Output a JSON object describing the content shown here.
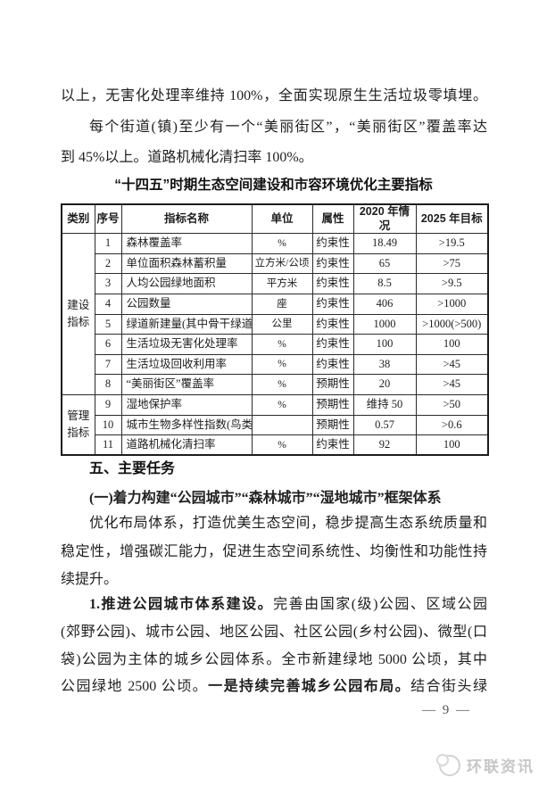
{
  "colors": {
    "page_background": "#ffffff",
    "text": "#1f1f1f",
    "table_border": "#1c1c1c",
    "watermark_gray": "#c7c7c7"
  },
  "intro": {
    "lines": [
      {
        "text": "以上，无害化处理率维持 100%，全面实现原生生活垃圾零填埋。"
      },
      {
        "text": "每个街道(镇)至少有一个“美丽街区”，“美丽街区”覆盖率达"
      },
      {
        "text": "到 45%以上。道路机械化清扫率 100%。"
      }
    ]
  },
  "table": {
    "title": "“十四五”时期生态空间建设和市容环境优化主要指标",
    "headers": [
      "类别",
      "序号",
      "指标名称",
      "单位",
      "属性",
      "2020 年情况",
      "2025 年目标"
    ],
    "groups": [
      {
        "category": "建设指标",
        "rows": [
          [
            "1",
            "森林覆盖率",
            "%",
            "约束性",
            "18.49",
            ">19.5"
          ],
          [
            "2",
            "单位面积森林蓄积量",
            "立方米/公顷",
            "约束性",
            "65",
            ">75"
          ],
          [
            "3",
            "人均公园绿地面积",
            "平方米",
            "约束性",
            "8.5",
            ">9.5"
          ],
          [
            "4",
            "公园数量",
            "座",
            "约束性",
            "406",
            ">1000"
          ],
          [
            "5",
            "绿道新建量(其中骨干绿道)",
            "公里",
            "约束性",
            "1000",
            ">1000(>500)"
          ],
          [
            "6",
            "生活垃圾无害化处理率",
            "%",
            "约束性",
            "100",
            "100"
          ],
          [
            "7",
            "生活垃圾回收利用率",
            "%",
            "约束性",
            "38",
            ">45"
          ],
          [
            "8",
            "“美丽街区”覆盖率",
            "%",
            "预期性",
            "20",
            ">45"
          ]
        ]
      },
      {
        "category": "管理指标",
        "rows": [
          [
            "9",
            "湿地保护率",
            "%",
            "预期性",
            "维持 50",
            ">50"
          ],
          [
            "10",
            "城市生物多样性指数(鸟类)",
            "",
            "预期性",
            "0.57",
            ">0.6"
          ],
          [
            "11",
            "道路机械化清扫率",
            "%",
            "约束性",
            "92",
            "100"
          ]
        ]
      }
    ]
  },
  "sections": {
    "heading": "五、主要任务",
    "subheading": "(一)着力构建“公园城市”“森林城市”“湿地城市”框架体系",
    "para1_lines": [
      "优化布局体系，打造优美生态空间，稳步提高生态系统质量和",
      "稳定性，增强碳汇能力，促进生态空间系统性、均衡性和功能性持",
      "续提升。"
    ],
    "para2": {
      "lead": "1.推进公园城市体系建设。",
      "line1_rest": "完善由国家(级)公园、区域公园",
      "line2": "(郊野公园)、城市公园、地区公园、社区公园(乡村公园)、微型(口",
      "line3": "袋)公园为主体的城乡公园体系。全市新建绿地 5000 公顷，其中",
      "line4_pre": "公园绿地 2500 公顷。",
      "line4_em": "一是持续完善城乡公园布局。",
      "line4_post": "结合街头绿"
    }
  },
  "footer": {
    "page_number": "— 9 —"
  },
  "watermark": {
    "text": "环联资讯",
    "icon": "logo-circle-icon"
  }
}
